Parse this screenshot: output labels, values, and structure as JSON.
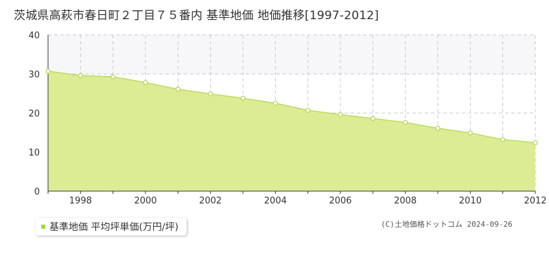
{
  "title": "茨城県高萩市春日町２丁目７５番内 基準地価 地価推移[1997-2012]",
  "legend_label": "基準地価 平均坪単価(万円/坪)",
  "credit": "(C)土地価格ドットコム 2024-09-26",
  "colors": {
    "fill": "#dcec94",
    "line": "#b9dc5e",
    "marker_fill": "#ffffff",
    "marker_stroke": "#b0d552",
    "grid": "#c8c8c8",
    "band": "#f7f6f9",
    "axis": "#333333"
  },
  "chart_data": {
    "type": "area",
    "x": [
      1997,
      1998,
      1999,
      2000,
      2001,
      2002,
      2003,
      2004,
      2005,
      2006,
      2007,
      2008,
      2009,
      2010,
      2011,
      2012
    ],
    "series": [
      {
        "name": "基準地価 平均坪単価(万円/坪)",
        "values": [
          30.7,
          29.6,
          29.3,
          27.8,
          26.1,
          24.9,
          23.8,
          22.5,
          20.7,
          19.6,
          18.6,
          17.6,
          16.1,
          14.9,
          13.2,
          12.4
        ]
      }
    ],
    "xlim": [
      1997,
      2012
    ],
    "ylim": [
      0,
      40
    ],
    "x_ticks": [
      1998,
      2000,
      2002,
      2004,
      2006,
      2008,
      2010,
      2012
    ],
    "y_ticks": [
      0,
      10,
      20,
      30,
      40
    ],
    "grid": true,
    "legend_position": "bottom-left"
  }
}
